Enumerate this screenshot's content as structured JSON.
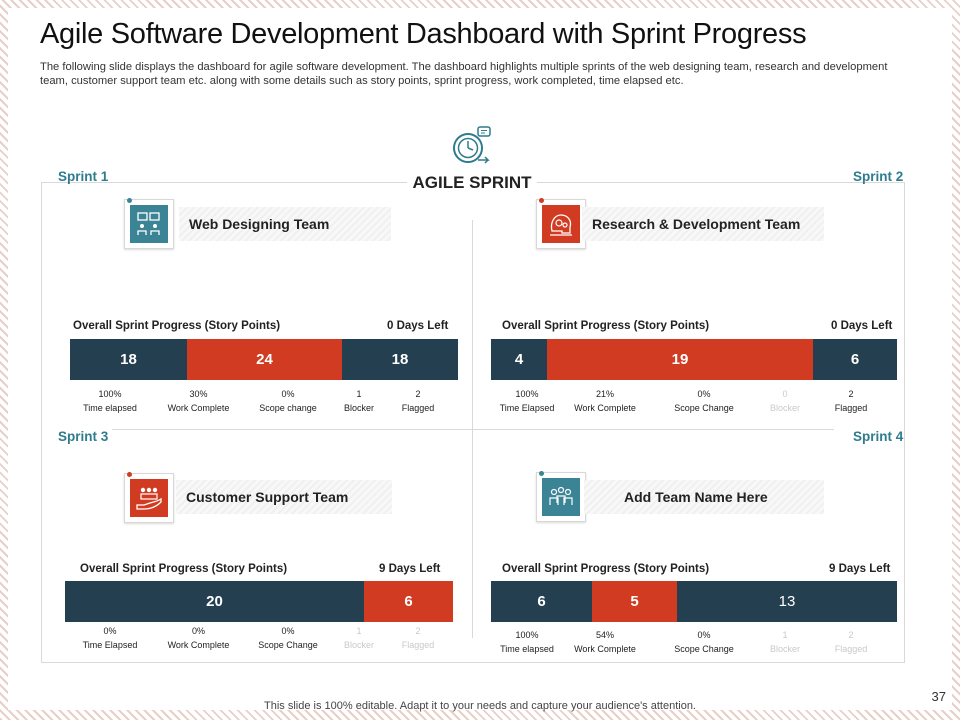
{
  "title": "Agile Software Development Dashboard with Sprint Progress",
  "subtitle": "The following slide displays the dashboard for agile software development. The dashboard highlights multiple sprints of the web designing team, research and development team, customer support team etc. along with some details such as story points, sprint progress, work completed, time elapsed etc.",
  "center": {
    "label": "AGILE SPRINT",
    "icon": "stopwatch-cycle-icon"
  },
  "colors": {
    "teal": "#3a8496",
    "red": "#d03b22",
    "navy": "#243f50",
    "faded": "#c9c9c9"
  },
  "sprints": [
    {
      "label": "Sprint 1",
      "team": "Web Designing Team",
      "team_icon": "collaboration-icon",
      "progress_title": "Overall Sprint Progress (Story Points)",
      "days_left": "0 Days Left",
      "segments": [
        {
          "value": "18",
          "color": "navy"
        },
        {
          "value": "24",
          "color": "red"
        },
        {
          "value": "18",
          "color": "navy"
        }
      ],
      "stats": [
        {
          "value": "100%",
          "label": "Time elapsed"
        },
        {
          "value": "30%",
          "label": "Work Complete"
        },
        {
          "value": "0%",
          "label": "Scope change"
        },
        {
          "value": "1",
          "label": "Blocker"
        },
        {
          "value": "2",
          "label": "Flagged"
        }
      ]
    },
    {
      "label": "Sprint 2",
      "team": "Research & Development Team",
      "team_icon": "brain-gears-icon",
      "progress_title": "Overall Sprint Progress (Story Points)",
      "days_left": "0 Days Left",
      "segments": [
        {
          "value": "4",
          "color": "navy"
        },
        {
          "value": "19",
          "color": "red"
        },
        {
          "value": "6",
          "color": "navy"
        }
      ],
      "stats": [
        {
          "value": "100%",
          "label": "Time Elapsed"
        },
        {
          "value": "21%",
          "label": "Work Complete"
        },
        {
          "value": "0%",
          "label": "Scope Change"
        },
        {
          "value": "0",
          "label": "Blocker",
          "faded": true
        },
        {
          "value": "2",
          "label": "Flagged"
        }
      ]
    },
    {
      "label": "Sprint 3",
      "team": "Customer Support Team",
      "team_icon": "hand-people-icon",
      "progress_title": "Overall Sprint Progress (Story Points)",
      "days_left": "9 Days Left",
      "segments": [
        {
          "value": "20",
          "color": "navy"
        },
        {
          "value": "6",
          "color": "red"
        }
      ],
      "stats": [
        {
          "value": "0%",
          "label": "Time Elapsed"
        },
        {
          "value": "0%",
          "label": "Work Complete"
        },
        {
          "value": "0%",
          "label": "Scope Change"
        },
        {
          "value": "1",
          "label": "Blocker",
          "faded": true
        },
        {
          "value": "2",
          "label": "Flagged",
          "faded": true
        }
      ]
    },
    {
      "label": "Sprint 4",
      "team": "Add Team Name Here",
      "team_icon": "team-group-icon",
      "progress_title": "Overall Sprint Progress (Story Points)",
      "days_left": "9 Days Left",
      "segments": [
        {
          "value": "6",
          "color": "navy"
        },
        {
          "value": "5",
          "color": "red"
        },
        {
          "value": "13",
          "color": "navy",
          "light": true
        }
      ],
      "stats": [
        {
          "value": "100%",
          "label": "Time elapsed"
        },
        {
          "value": "54%",
          "label": "Work Complete"
        },
        {
          "value": "0%",
          "label": "Scope Change"
        },
        {
          "value": "1",
          "label": "Blocker",
          "faded": true
        },
        {
          "value": "2",
          "label": "Flagged",
          "faded": true
        }
      ]
    }
  ],
  "footer": "This slide is 100% editable. Adapt it to your needs and capture your audience's attention.",
  "page_number": "37"
}
